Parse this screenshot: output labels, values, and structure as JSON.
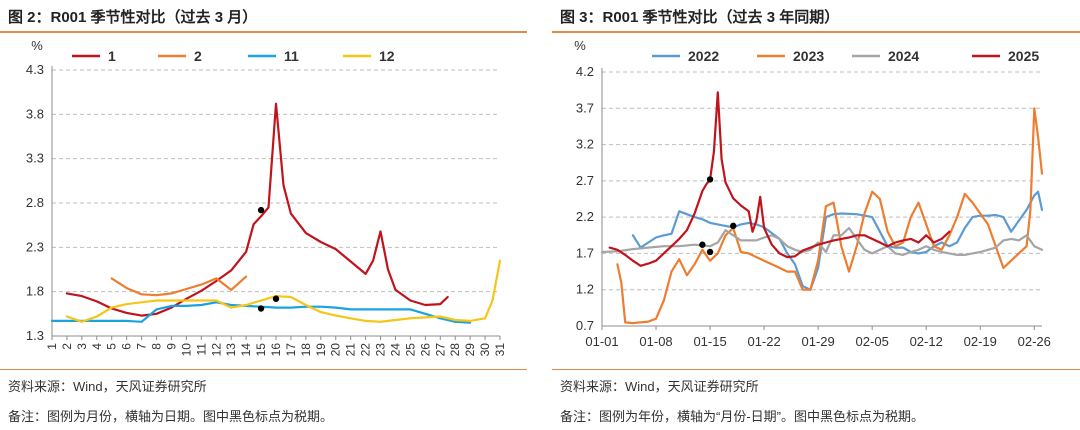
{
  "left": {
    "title": "图 2：R001 季节性对比（过去 3 月）",
    "source": "资料来源：Wind，天风证券研究所",
    "note": "备注：图例为月份，横轴为日期。图中黑色标点为税期。"
  },
  "right": {
    "title": "图 3：R001 季节性对比（过去 3 年同期）",
    "source": "资料来源：Wind，天风证券研究所",
    "note": "备注：图例为年份，横轴为“月份-日期”。图中黑色标点为税期。"
  },
  "chart_data": [
    {
      "type": "line",
      "title": "R001 季节性对比（过去 3 月）",
      "ylabel": "%",
      "xlabel": "",
      "ylim": [
        1.3,
        4.3
      ],
      "yticks": [
        "1.3",
        "1.8",
        "2.3",
        "2.8",
        "3.3",
        "3.8",
        "4.3"
      ],
      "ytick_values": [
        1.3,
        1.8,
        2.3,
        2.8,
        3.3,
        3.8,
        4.3
      ],
      "xlim": [
        1,
        31
      ],
      "xticks": [
        "1",
        "2",
        "3",
        "4",
        "5",
        "6",
        "7",
        "8",
        "9",
        "10",
        "11",
        "12",
        "13",
        "14",
        "15",
        "16",
        "17",
        "18",
        "19",
        "20",
        "21",
        "22",
        "23",
        "24",
        "25",
        "26",
        "27",
        "28",
        "29",
        "30",
        "31"
      ],
      "legend_position": "top",
      "series": [
        {
          "name": "1",
          "color": "#c0141c",
          "x": [
            2,
            3,
            4,
            5,
            6,
            7,
            8,
            9,
            10,
            11,
            12,
            13,
            14,
            14.5,
            15,
            15.5,
            16,
            16.5,
            17,
            18,
            19,
            20,
            21,
            22,
            22.5,
            23,
            23.5,
            24,
            25,
            26,
            27,
            27.5
          ],
          "values": [
            1.78,
            1.75,
            1.69,
            1.61,
            1.56,
            1.53,
            1.55,
            1.62,
            1.72,
            1.81,
            1.92,
            2.04,
            2.25,
            2.56,
            2.65,
            2.75,
            3.92,
            3.0,
            2.68,
            2.46,
            2.36,
            2.28,
            2.14,
            2.0,
            2.15,
            2.48,
            2.05,
            1.82,
            1.7,
            1.65,
            1.66,
            1.74
          ]
        },
        {
          "name": "2",
          "color": "#ed7d31",
          "x": [
            5,
            6,
            7,
            8,
            9,
            10,
            11,
            12,
            13,
            14
          ],
          "values": [
            1.95,
            1.84,
            1.77,
            1.76,
            1.78,
            1.83,
            1.88,
            1.95,
            1.82,
            1.97
          ]
        },
        {
          "name": "11",
          "color": "#1aa3e0",
          "x": [
            1,
            2,
            3,
            4,
            5,
            6,
            7,
            8,
            9,
            10,
            11,
            12,
            13,
            14,
            15,
            16,
            17,
            18,
            19,
            20,
            21,
            22,
            23,
            24,
            25,
            26,
            27,
            28,
            29
          ],
          "values": [
            1.47,
            1.47,
            1.47,
            1.47,
            1.47,
            1.47,
            1.46,
            1.6,
            1.64,
            1.64,
            1.65,
            1.68,
            1.65,
            1.64,
            1.63,
            1.62,
            1.62,
            1.63,
            1.63,
            1.62,
            1.6,
            1.6,
            1.6,
            1.6,
            1.6,
            1.55,
            1.5,
            1.46,
            1.45
          ]
        },
        {
          "name": "12",
          "color": "#f5c518",
          "x": [
            2,
            3,
            4,
            5,
            6,
            7,
            8,
            9,
            10,
            11,
            12,
            13,
            14,
            15,
            16,
            17,
            18,
            19,
            20,
            21,
            22,
            23,
            24,
            25,
            26,
            27,
            28,
            29,
            30,
            30.5,
            31
          ],
          "values": [
            1.52,
            1.46,
            1.52,
            1.62,
            1.66,
            1.68,
            1.7,
            1.7,
            1.7,
            1.7,
            1.7,
            1.62,
            1.65,
            1.7,
            1.75,
            1.74,
            1.65,
            1.57,
            1.53,
            1.5,
            1.47,
            1.46,
            1.48,
            1.5,
            1.51,
            1.52,
            1.48,
            1.47,
            1.5,
            1.7,
            2.15
          ]
        }
      ],
      "tax_points": [
        {
          "x": 15,
          "y": 2.72
        },
        {
          "x": 16,
          "y": 1.72
        },
        {
          "x": 15,
          "y": 1.61
        }
      ]
    },
    {
      "type": "line",
      "title": "R001 季节性对比（过去 3 年同期）",
      "ylabel": "%",
      "xlabel": "",
      "ylim": [
        0.7,
        4.2
      ],
      "yticks": [
        "0.7",
        "1.2",
        "1.7",
        "2.2",
        "2.7",
        "3.2",
        "3.7",
        "4.2"
      ],
      "ytick_values": [
        0.7,
        1.2,
        1.7,
        2.2,
        2.7,
        3.2,
        3.7,
        4.2
      ],
      "xlim": [
        1,
        58
      ],
      "xticks": [
        "01-01",
        "01-08",
        "01-15",
        "01-22",
        "01-29",
        "02-05",
        "02-12",
        "02-19",
        "02-26"
      ],
      "xtick_values": [
        1,
        8,
        15,
        22,
        29,
        36,
        43,
        50,
        57
      ],
      "legend_position": "top",
      "series": [
        {
          "name": "2022",
          "color": "#5b9bd5",
          "x": [
            5,
            6,
            7,
            8,
            9,
            10,
            11,
            12,
            13,
            14,
            15,
            16,
            17,
            18,
            19,
            20,
            21,
            22,
            23,
            24,
            25,
            26,
            27,
            28,
            29,
            30,
            31,
            32,
            34,
            36,
            37,
            38,
            39,
            40,
            41,
            42,
            43,
            44,
            45,
            46,
            47,
            48,
            49,
            50,
            51,
            52,
            53,
            54,
            55,
            56,
            57,
            57.5,
            58
          ],
          "values": [
            1.95,
            1.78,
            1.85,
            1.92,
            1.95,
            1.97,
            2.28,
            2.24,
            2.2,
            2.17,
            2.12,
            2.1,
            2.08,
            2.06,
            2.1,
            2.12,
            2.1,
            2.06,
            1.98,
            1.9,
            1.7,
            1.55,
            1.25,
            1.2,
            1.5,
            2.2,
            2.24,
            2.25,
            2.24,
            2.2,
            2.0,
            1.8,
            1.78,
            1.78,
            1.72,
            1.7,
            1.72,
            1.8,
            1.85,
            1.8,
            1.85,
            2.05,
            2.2,
            2.22,
            2.22,
            2.23,
            2.2,
            2.0,
            2.15,
            2.3,
            2.5,
            2.55,
            2.3
          ]
        },
        {
          "name": "2023",
          "color": "#ed7d31",
          "x": [
            3,
            3.5,
            4,
            5,
            6,
            7,
            8,
            9,
            10,
            11,
            12,
            13,
            14,
            15,
            16,
            17,
            18,
            19,
            20,
            21,
            22,
            23,
            24,
            25,
            26,
            27,
            28,
            29,
            30,
            31,
            32,
            33,
            34,
            35,
            36,
            37,
            38,
            39,
            40,
            41,
            42,
            43,
            44,
            45,
            46,
            47,
            48,
            49,
            50,
            51,
            52,
            53,
            54,
            55,
            56,
            56.5,
            57,
            57.5,
            58
          ],
          "values": [
            1.55,
            1.3,
            0.75,
            0.74,
            0.75,
            0.76,
            0.8,
            1.05,
            1.45,
            1.62,
            1.4,
            1.55,
            1.75,
            1.6,
            1.7,
            1.95,
            2.05,
            1.72,
            1.7,
            1.65,
            1.6,
            1.55,
            1.5,
            1.45,
            1.45,
            1.2,
            1.2,
            1.6,
            2.35,
            2.4,
            1.8,
            1.45,
            1.8,
            2.25,
            2.55,
            2.45,
            2.0,
            1.8,
            1.85,
            2.2,
            2.4,
            2.1,
            1.8,
            1.75,
            1.95,
            2.2,
            2.52,
            2.4,
            2.25,
            2.1,
            1.8,
            1.5,
            1.6,
            1.7,
            1.8,
            2.3,
            3.7,
            3.3,
            2.8
          ]
        },
        {
          "name": "2024",
          "color": "#a5a5a5",
          "x": [
            1,
            3,
            5,
            7,
            9,
            11,
            13,
            15,
            16,
            17,
            18,
            19,
            20,
            21,
            22,
            23,
            24,
            25,
            26,
            27,
            28,
            29,
            30,
            31,
            32,
            33,
            34,
            35,
            36,
            37,
            38,
            39,
            40,
            41,
            42,
            43,
            44,
            45,
            46,
            47,
            48,
            49,
            50,
            51,
            52,
            53,
            54,
            55,
            56,
            57,
            58
          ],
          "values": [
            1.72,
            1.73,
            1.76,
            1.78,
            1.8,
            1.8,
            1.82,
            1.8,
            1.85,
            2.02,
            1.95,
            1.88,
            1.88,
            1.88,
            1.92,
            1.95,
            1.9,
            1.8,
            1.75,
            1.72,
            1.75,
            1.85,
            1.72,
            1.95,
            1.95,
            2.05,
            1.9,
            1.75,
            1.7,
            1.75,
            1.8,
            1.7,
            1.68,
            1.72,
            1.75,
            1.8,
            1.75,
            1.72,
            1.7,
            1.68,
            1.68,
            1.7,
            1.72,
            1.75,
            1.78,
            1.88,
            1.9,
            1.88,
            1.95,
            1.8,
            1.75
          ]
        },
        {
          "name": "2025",
          "color": "#c0141c",
          "x": [
            2,
            3,
            4,
            5,
            6,
            7,
            8,
            9,
            10,
            11,
            12,
            13,
            14,
            14.5,
            15,
            15.5,
            16,
            16.5,
            17,
            18,
            19,
            20,
            20.5,
            21,
            21.5,
            22,
            23,
            24,
            25,
            26,
            27,
            28,
            29,
            30,
            31,
            32,
            33,
            34,
            35,
            36,
            37,
            38,
            39,
            40,
            41,
            42,
            43,
            44,
            45,
            46
          ],
          "values": [
            1.78,
            1.75,
            1.68,
            1.6,
            1.53,
            1.56,
            1.6,
            1.7,
            1.8,
            1.9,
            2.02,
            2.25,
            2.56,
            2.65,
            2.72,
            3.1,
            3.92,
            3.0,
            2.68,
            2.46,
            2.36,
            2.28,
            2.0,
            2.15,
            2.48,
            2.05,
            1.82,
            1.7,
            1.65,
            1.66,
            1.74,
            1.78,
            1.82,
            1.85,
            1.88,
            1.9,
            1.92,
            1.95,
            1.95,
            1.9,
            1.85,
            1.8,
            1.85,
            1.88,
            1.9,
            1.85,
            1.95,
            1.85,
            1.9,
            2.0
          ]
        }
      ],
      "tax_points": [
        {
          "x": 15,
          "y": 2.72
        },
        {
          "x": 14,
          "y": 1.82
        },
        {
          "x": 15,
          "y": 1.72
        },
        {
          "x": 18,
          "y": 2.08
        }
      ]
    }
  ]
}
